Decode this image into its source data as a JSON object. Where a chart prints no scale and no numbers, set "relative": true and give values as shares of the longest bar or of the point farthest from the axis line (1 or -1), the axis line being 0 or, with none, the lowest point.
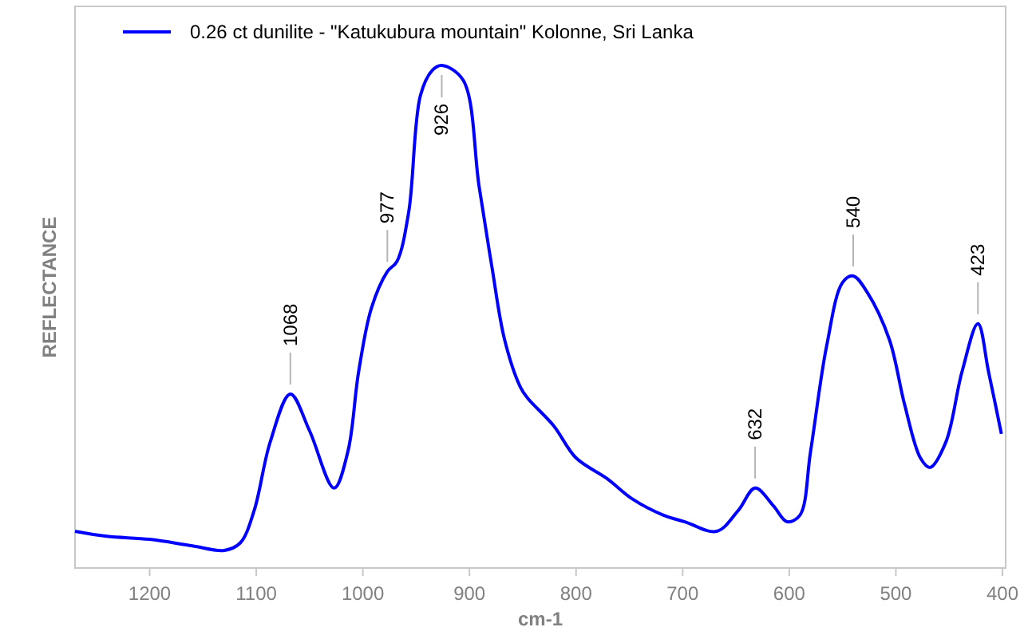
{
  "chart_data": {
    "type": "line",
    "relative": true,
    "xlabel": "cm-1",
    "ylabel": "REFLECTANCE",
    "xlim": [
      1270,
      397
    ],
    "xticks": [
      1200,
      1100,
      1000,
      900,
      800,
      700,
      600,
      500,
      400
    ],
    "grid": false,
    "legend": "top left",
    "line_style": "solid",
    "series": [
      {
        "name": "0.26 ct dunilite - \"Katukubura mountain\"  Kolonne, Sri Lanka",
        "color": "#0000ff",
        "x": [
          1270,
          1240,
          1200,
          1160,
          1130,
          1115,
          1102,
          1087,
          1068,
          1050,
          1027,
          1014,
          1004,
          992,
          977,
          968,
          957,
          946,
          935,
          926,
          906,
          891,
          879,
          867,
          852,
          845,
          821,
          800,
          771,
          747,
          718,
          698,
          668,
          648,
          632,
          615,
          602,
          590,
          580,
          565,
          550,
          540,
          527,
          506,
          492,
          477,
          468,
          453,
          438,
          423,
          413,
          401
        ],
        "values": [
          0.073,
          0.063,
          0.057,
          0.044,
          0.035,
          0.05,
          0.114,
          0.25,
          0.346,
          0.273,
          0.159,
          0.232,
          0.39,
          0.517,
          0.59,
          0.61,
          0.708,
          0.94,
          0.99,
          1.0,
          0.971,
          0.76,
          0.6,
          0.454,
          0.359,
          0.337,
          0.283,
          0.219,
          0.178,
          0.137,
          0.105,
          0.092,
          0.073,
          0.114,
          0.159,
          0.124,
          0.092,
          0.105,
          0.232,
          0.441,
          0.568,
          0.581,
          0.549,
          0.454,
          0.327,
          0.219,
          0.2,
          0.251,
          0.39,
          0.486,
          0.39,
          0.267
        ]
      }
    ],
    "annotations": [
      {
        "text": "1068",
        "x": 1068,
        "y": 0.346
      },
      {
        "text": "977",
        "x": 977,
        "y": 0.59
      },
      {
        "text": "926",
        "x": 926,
        "y": 1.0
      },
      {
        "text": "632",
        "x": 632,
        "y": 0.159
      },
      {
        "text": "540",
        "x": 540,
        "y": 0.581
      },
      {
        "text": "423",
        "x": 423,
        "y": 0.486
      }
    ]
  }
}
